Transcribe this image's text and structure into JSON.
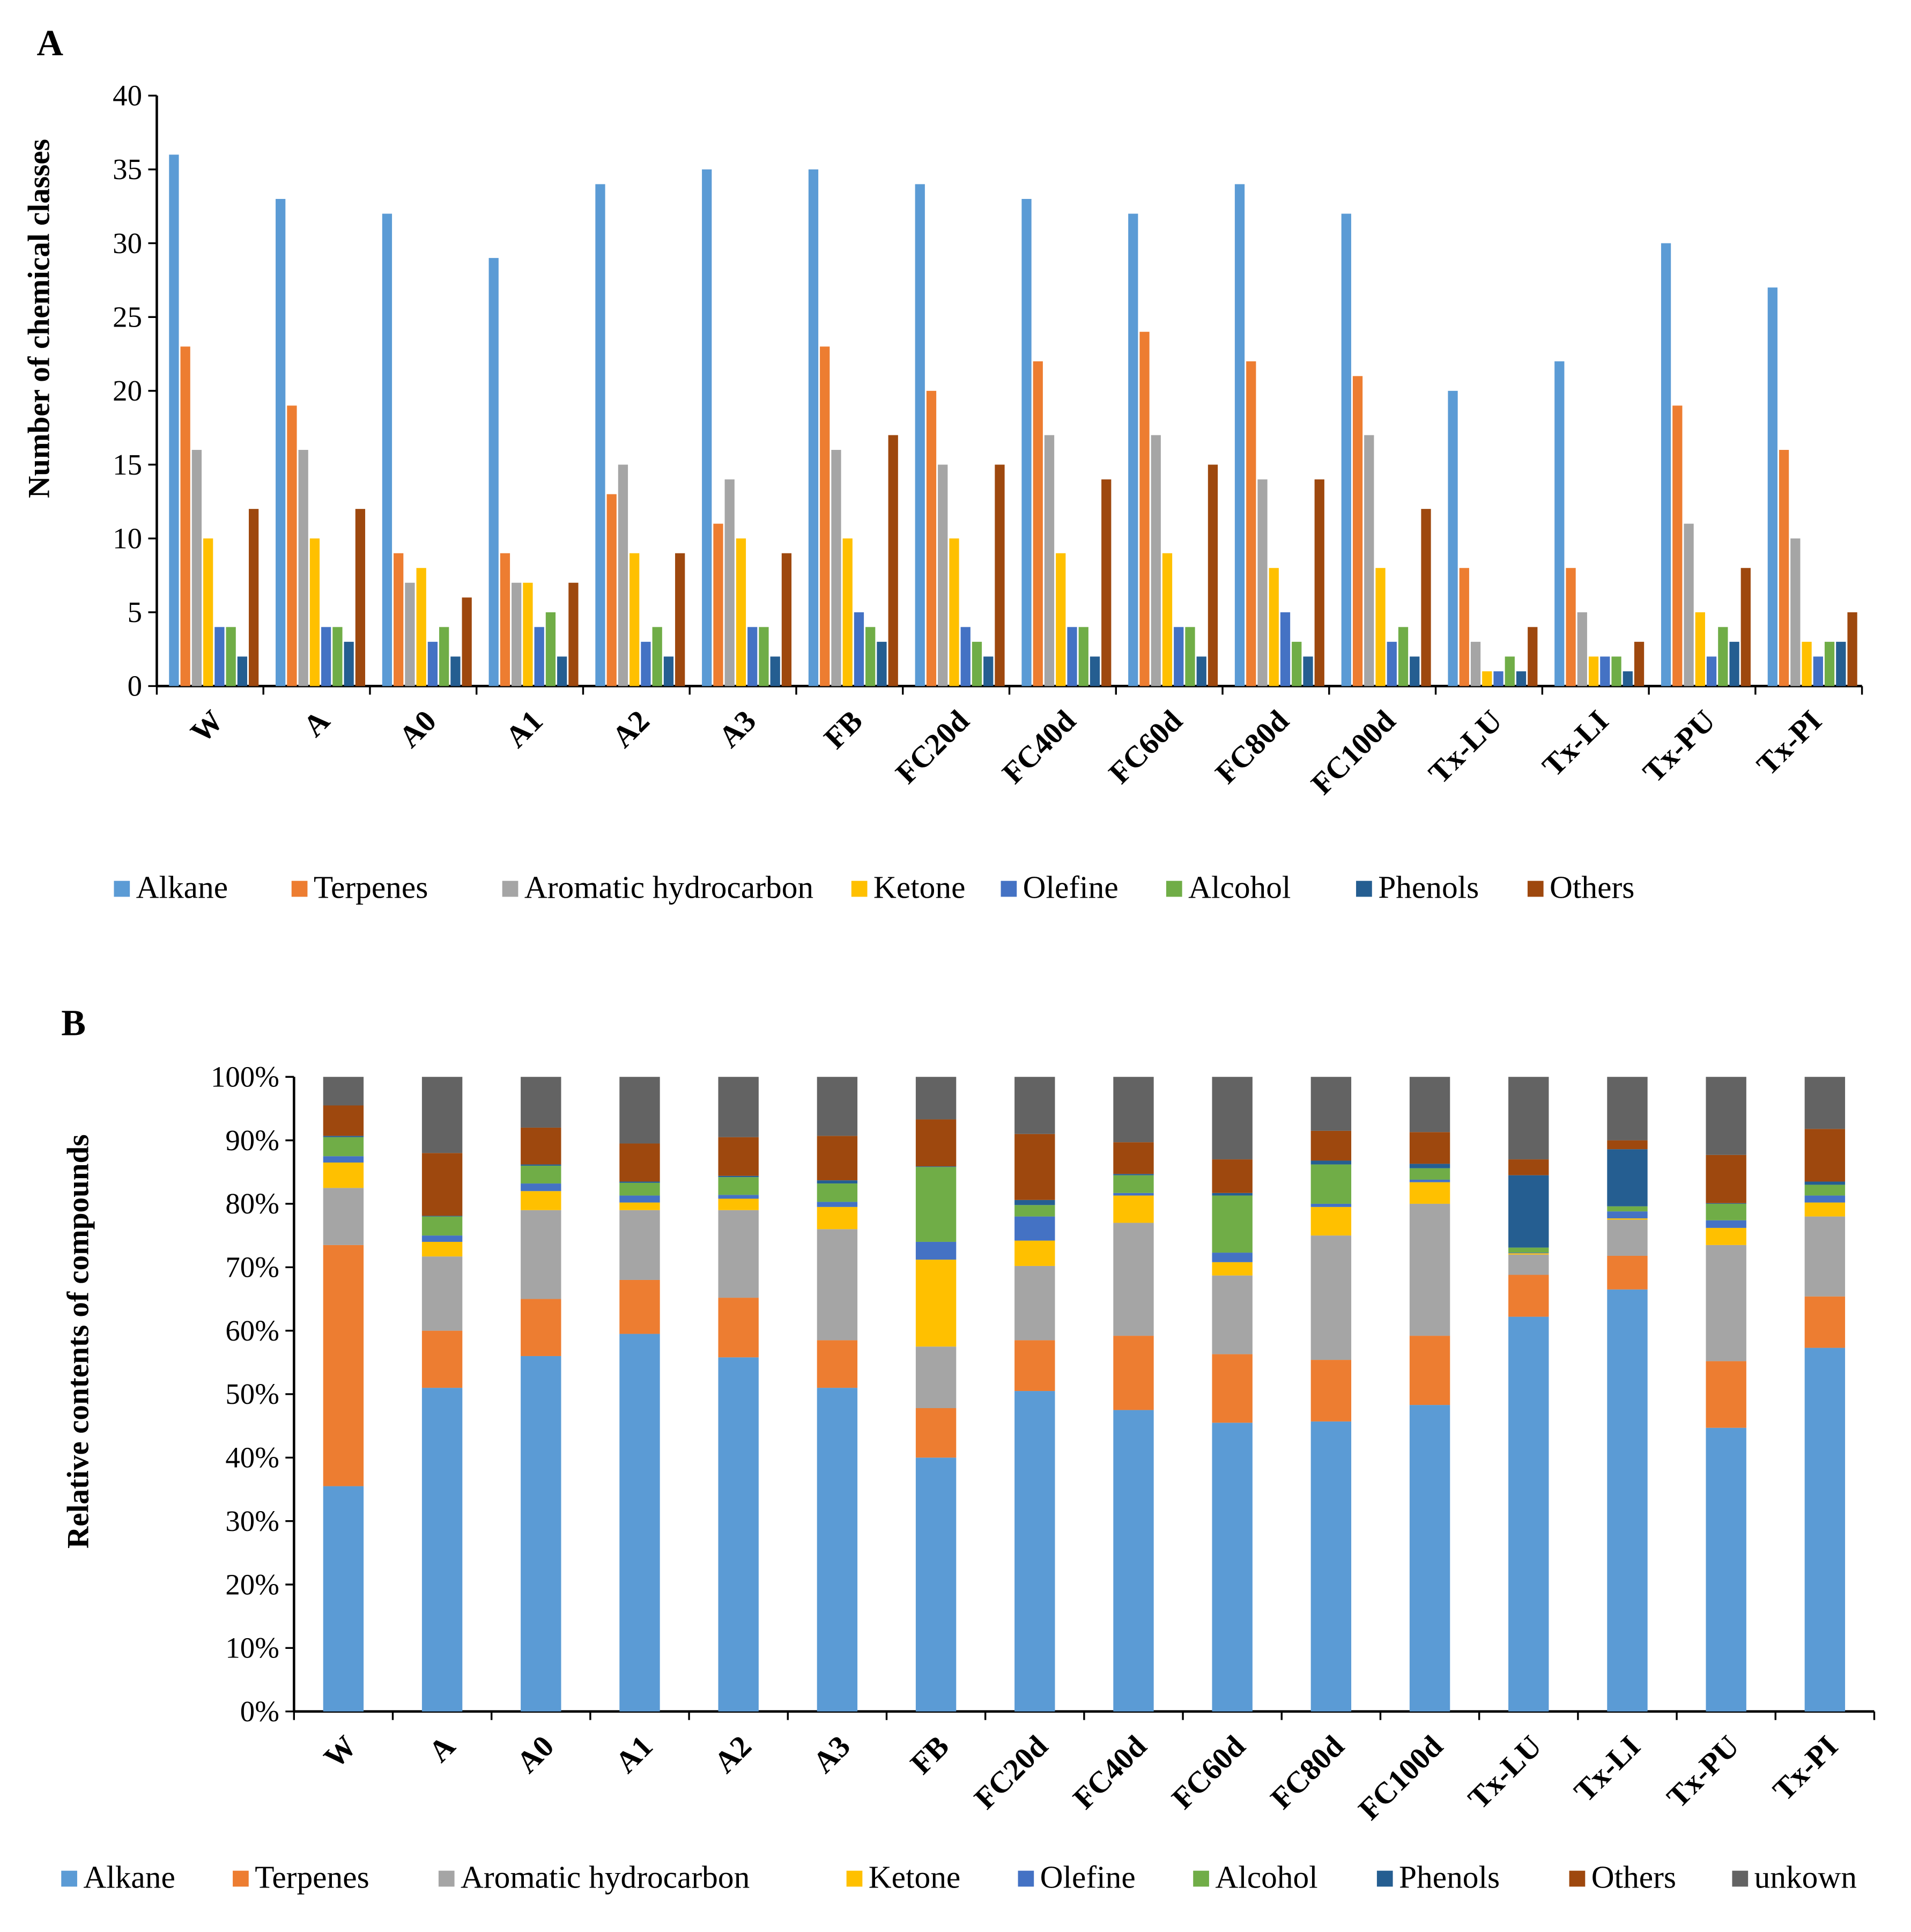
{
  "colors": {
    "Alkane": "#5B9BD5",
    "Terpenes": "#ED7D31",
    "Aromatic hydrocarbon": "#A5A5A5",
    "Ketone": "#FFC000",
    "Olefine": "#4472C4",
    "Alcohol": "#70AD47",
    "Phenols": "#255E91",
    "Others": "#9E480E",
    "unkown": "#636363"
  },
  "chart_data": [
    {
      "panel": "A",
      "type": "bar",
      "ylabel": "Number of chemical classes",
      "xlabel": "",
      "ylim": [
        0,
        40
      ],
      "yticks": [
        0,
        5,
        10,
        15,
        20,
        25,
        30,
        35,
        40
      ],
      "legend_position": "bottom",
      "categories": [
        "W",
        "A",
        "A0",
        "A1",
        "A2",
        "A3",
        "FB",
        "FC20d",
        "FC40d",
        "FC60d",
        "FC80d",
        "FC100d",
        "Tx-LU",
        "Tx-LI",
        "Tx-PU",
        "Tx-PI"
      ],
      "series": [
        {
          "name": "Alkane",
          "values": [
            36,
            33,
            32,
            29,
            34,
            35,
            35,
            34,
            33,
            32,
            34,
            32,
            20,
            22,
            30,
            27
          ]
        },
        {
          "name": "Terpenes",
          "values": [
            23,
            19,
            9,
            9,
            13,
            11,
            23,
            20,
            22,
            24,
            22,
            21,
            8,
            8,
            19,
            16
          ]
        },
        {
          "name": "Aromatic hydrocarbon",
          "values": [
            16,
            16,
            7,
            7,
            15,
            14,
            16,
            15,
            17,
            17,
            14,
            17,
            3,
            5,
            11,
            10
          ]
        },
        {
          "name": "Ketone",
          "values": [
            10,
            10,
            8,
            7,
            9,
            10,
            10,
            10,
            9,
            9,
            8,
            8,
            1,
            2,
            5,
            3
          ]
        },
        {
          "name": "Olefine",
          "values": [
            4,
            4,
            3,
            4,
            3,
            4,
            5,
            4,
            4,
            4,
            5,
            3,
            1,
            2,
            2,
            2
          ]
        },
        {
          "name": "Alcohol",
          "values": [
            4,
            4,
            4,
            5,
            4,
            4,
            4,
            3,
            4,
            4,
            3,
            4,
            2,
            2,
            4,
            3
          ]
        },
        {
          "name": "Phenols",
          "values": [
            2,
            3,
            2,
            2,
            2,
            2,
            3,
            2,
            2,
            2,
            2,
            2,
            1,
            1,
            3,
            3
          ]
        },
        {
          "name": "Others",
          "values": [
            12,
            12,
            6,
            7,
            9,
            9,
            17,
            15,
            14,
            15,
            14,
            12,
            4,
            3,
            8,
            5
          ]
        }
      ]
    },
    {
      "panel": "B",
      "type": "bar",
      "stacked": true,
      "ylabel": "Relative contents of compounds",
      "xlabel": "",
      "ylim": [
        0,
        100
      ],
      "yticks": [
        "0%",
        "10%",
        "20%",
        "30%",
        "40%",
        "50%",
        "60%",
        "70%",
        "80%",
        "90%",
        "100%"
      ],
      "legend_position": "bottom",
      "categories": [
        "W",
        "A",
        "A0",
        "A1",
        "A2",
        "A3",
        "FB",
        "FC20d",
        "FC40d",
        "FC60d",
        "FC80d",
        "FC100d",
        "Tx-LU",
        "Tx-LI",
        "Tx-PU",
        "Tx-PI"
      ],
      "series": [
        {
          "name": "Alkane",
          "values": [
            35.5,
            51,
            56,
            59.5,
            55.8,
            51,
            40,
            50.5,
            47.5,
            45.5,
            45.7,
            48.3,
            62.2,
            66.5,
            44.7,
            57.3
          ]
        },
        {
          "name": "Terpenes",
          "values": [
            38,
            9,
            9,
            8.5,
            9.4,
            7.5,
            7.8,
            8,
            11.7,
            10.8,
            9.7,
            10.9,
            6.6,
            5.3,
            10.5,
            8.1
          ]
        },
        {
          "name": "Aromatic hydrocarbon",
          "values": [
            9,
            11.7,
            14,
            11,
            13.8,
            17.5,
            9.7,
            11.7,
            17.8,
            12.4,
            19.6,
            20.8,
            3.2,
            5.7,
            18.3,
            12.6
          ]
        },
        {
          "name": "Ketone",
          "values": [
            4,
            2.3,
            3,
            1.2,
            1.8,
            3.5,
            13.7,
            4,
            4.3,
            2.1,
            4.5,
            3.4,
            0.2,
            0.2,
            2.7,
            2.2
          ]
        },
        {
          "name": "Olefine",
          "values": [
            1,
            1,
            1.2,
            1.1,
            0.6,
            0.8,
            2.8,
            3.8,
            0.4,
            1.5,
            0.5,
            0.4,
            0.1,
            1.1,
            1.2,
            1.1
          ]
        },
        {
          "name": "Alcohol",
          "values": [
            3,
            3,
            2.8,
            2,
            2.8,
            2.9,
            11.8,
            1.8,
            2.8,
            9,
            6.2,
            1.8,
            0.8,
            0.8,
            2.6,
            1.7
          ]
        },
        {
          "name": "Phenols",
          "values": [
            0.2,
            0.1,
            0.2,
            0.2,
            0.2,
            0.5,
            0.1,
            0.8,
            0.2,
            0.4,
            0.6,
            0.7,
            11.4,
            9,
            0.1,
            0.5
          ]
        },
        {
          "name": "Others",
          "values": [
            4.8,
            9.9,
            5.8,
            6,
            6.1,
            7,
            7.4,
            10.4,
            5,
            5.3,
            4.7,
            5,
            2.5,
            1.4,
            7.6,
            8.3
          ]
        },
        {
          "name": "unkown",
          "values": [
            4.5,
            12,
            8,
            10.5,
            9.5,
            9.3,
            6.7,
            9,
            10.3,
            13,
            8.5,
            8.7,
            13,
            10,
            12.3,
            8.2
          ]
        }
      ]
    }
  ]
}
